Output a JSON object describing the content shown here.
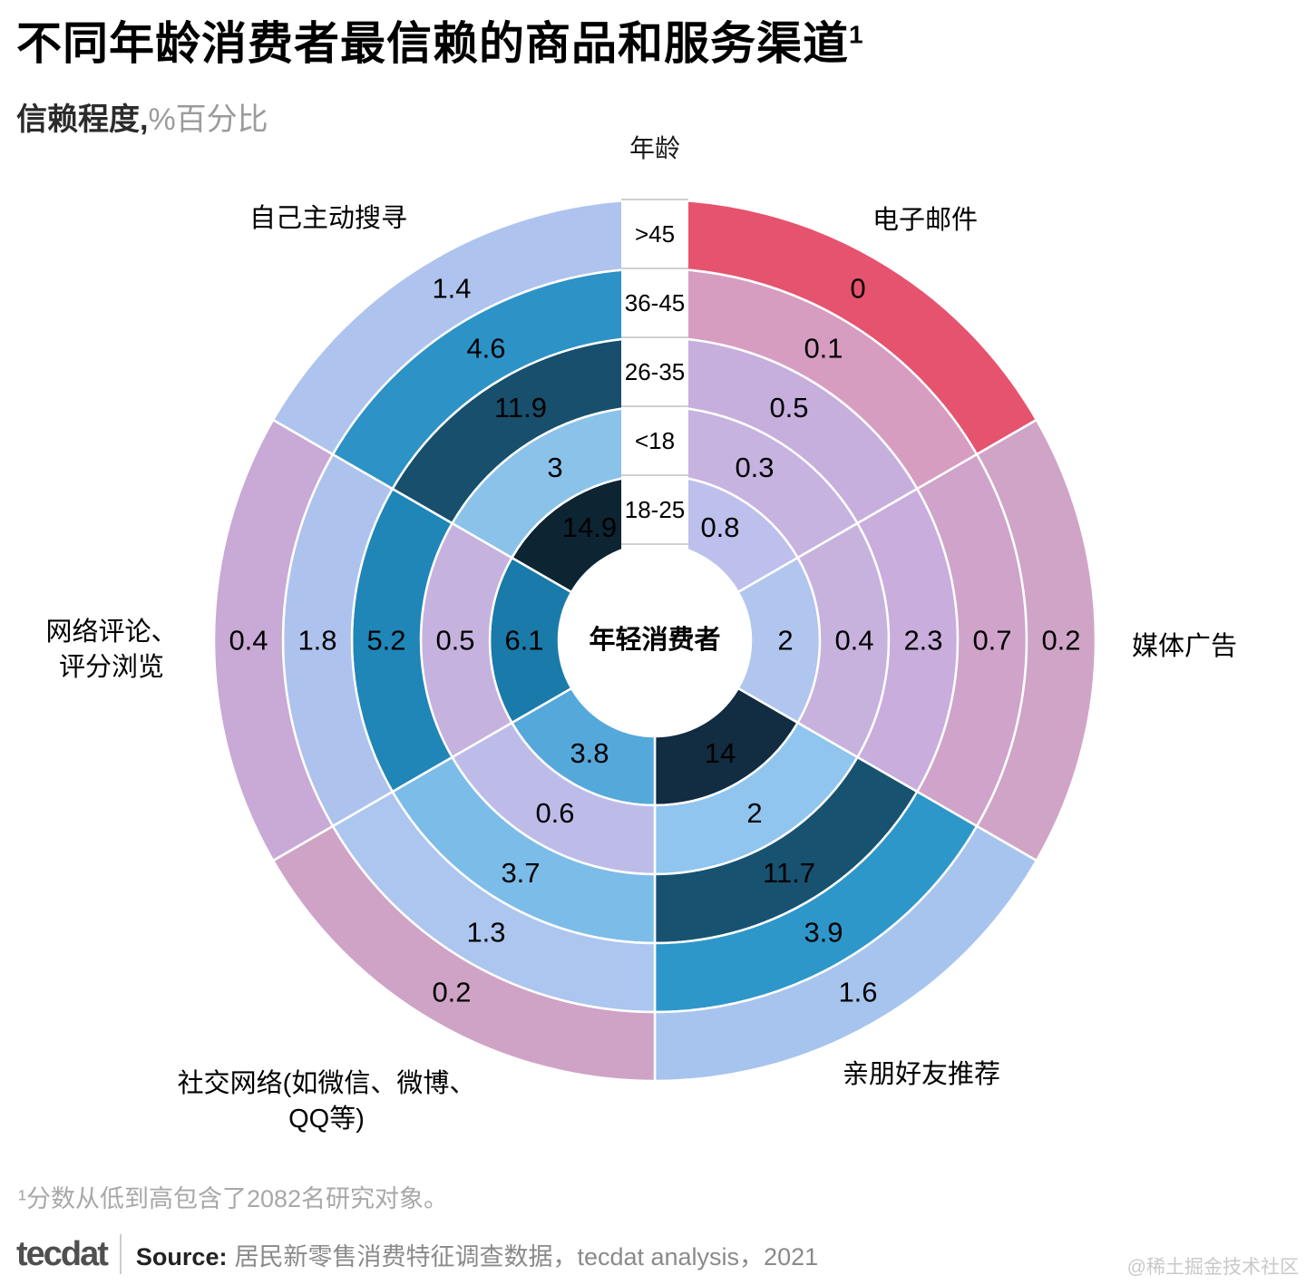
{
  "page": {
    "title": "不同年龄消费者最信赖的商品和服务渠道",
    "title_sup": "1",
    "subtitle_bold": "信赖程度,",
    "subtitle_gray": "%百分比",
    "age_axis_label": "年龄",
    "center_label": "年轻消费者",
    "footnote": "¹分数从低到高包含了2082名研究对象。",
    "brand": "tecdat",
    "source_label": "Source:",
    "source_text": "居民新零售消费特征调查数据，tecdat analysis，2021",
    "watermark": "@稀土掘金技术社区"
  },
  "chart_data": {
    "type": "heatmap",
    "variant": "radial-ring-heatmap",
    "title": "不同年龄消费者最信赖的商品和服务渠道",
    "value_label": "信赖程度, %百分比",
    "age_axis_label": "年龄",
    "center_label": "年轻消费者",
    "ring_labels_outer_to_inner": [
      ">45",
      "36-45",
      "26-35",
      "<18",
      "18-25"
    ],
    "age_groups_inner_to_outer": [
      "18-25",
      "<18",
      "26-35",
      "36-45",
      ">45"
    ],
    "sector_order": "clockwise from top",
    "sectors": [
      {
        "name": "电子邮件",
        "label_lines": [
          "电子邮件"
        ],
        "values_inner_to_outer": [
          0.8,
          0.3,
          0.5,
          0.1,
          0
        ],
        "colors_inner_to_outer": [
          "#bdc0ec",
          "#c6b3e0",
          "#c6aedd",
          "#d79dc1",
          "#e6536e"
        ]
      },
      {
        "name": "媒体广告",
        "label_lines": [
          "媒体广告"
        ],
        "values_inner_to_outer": [
          2,
          0.4,
          2.3,
          0.7,
          0.2
        ],
        "colors_inner_to_outer": [
          "#b0c6ee",
          "#c7b2de",
          "#c9addc",
          "#cfa3ca",
          "#d0a4c7"
        ]
      },
      {
        "name": "亲朋好友推荐",
        "label_lines": [
          "亲朋好友推荐"
        ],
        "values_inner_to_outer": [
          14,
          2,
          11.7,
          3.9,
          1.6
        ],
        "colors_inner_to_outer": [
          "#122c42",
          "#8fc5ee",
          "#175271",
          "#2e97ca",
          "#a7c4ee"
        ]
      },
      {
        "name": "社交网络(如微信、微博、QQ等)",
        "label_lines": [
          "社交网络(如微信、微博、",
          "QQ等)"
        ],
        "values_inner_to_outer": [
          3.8,
          0.6,
          3.7,
          1.3,
          0.2
        ],
        "colors_inner_to_outer": [
          "#55a8da",
          "#bdbce9",
          "#7cbce8",
          "#adc6ef",
          "#cfa3c6"
        ]
      },
      {
        "name": "网络评论、评分浏览",
        "label_lines": [
          "网络评论、",
          "评分浏览"
        ],
        "values_inner_to_outer": [
          6.1,
          0.5,
          5.2,
          1.8,
          0.4
        ],
        "colors_inner_to_outer": [
          "#1a7aa9",
          "#c6b2de",
          "#1f86b7",
          "#adc3ee",
          "#c9a9d5"
        ]
      },
      {
        "name": "自己主动搜寻",
        "label_lines": [
          "自己主动搜寻"
        ],
        "values_inner_to_outer": [
          14.9,
          3,
          11.9,
          4.6,
          1.4
        ],
        "colors_inner_to_outer": [
          "#0d2433",
          "#8ac2ea",
          "#174f6d",
          "#2d92c5",
          "#aec3ee"
        ]
      }
    ]
  }
}
